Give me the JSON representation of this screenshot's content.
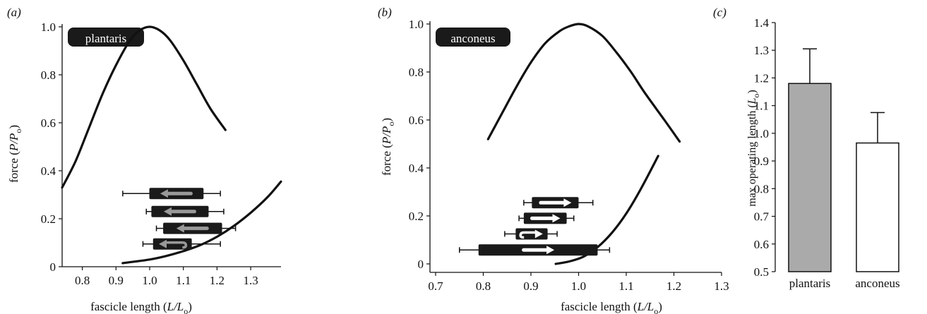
{
  "chart_data": [
    {
      "panel": "(a)",
      "type": "line",
      "label_box": "plantaris",
      "xlabel_prefix": "fascicle length (",
      "xlabel_var": "L/L",
      "xlabel_sub": "o",
      "xlabel_suffix": ")",
      "ylabel_prefix": "force (",
      "ylabel_var": "P/P",
      "ylabel_sub": "o",
      "ylabel_suffix": ")",
      "xlim": [
        0.74,
        1.39
      ],
      "ylim": [
        0,
        1.0
      ],
      "xticks": [
        0.8,
        0.9,
        1.0,
        1.1,
        1.2,
        1.3
      ],
      "xtick_labels": [
        "0.8",
        "0.9",
        "1.0",
        "1.1",
        "1.2",
        "1.3"
      ],
      "yticks": [
        0,
        0.2,
        0.4,
        0.6,
        0.8,
        1.0
      ],
      "ytick_labels": [
        "0",
        "0.2",
        "0.4",
        "0.6",
        "0.8",
        "1.0"
      ],
      "active_curve": {
        "x": [
          0.74,
          0.78,
          0.82,
          0.86,
          0.9,
          0.94,
          0.97,
          1.0,
          1.03,
          1.06,
          1.1,
          1.14,
          1.18,
          1.225
        ],
        "y": [
          0.33,
          0.44,
          0.58,
          0.72,
          0.84,
          0.94,
          0.985,
          1.0,
          0.985,
          0.945,
          0.86,
          0.76,
          0.66,
          0.57
        ]
      },
      "passive_curve": {
        "x": [
          0.92,
          1.0,
          1.05,
          1.1,
          1.15,
          1.2,
          1.25,
          1.3,
          1.35,
          1.39
        ],
        "y": [
          0.015,
          0.03,
          0.045,
          0.065,
          0.09,
          0.125,
          0.17,
          0.225,
          0.29,
          0.355
        ]
      },
      "fascicle_bars": [
        {
          "force": 0.305,
          "whisker": [
            0.92,
            1.21
          ],
          "box": [
            0.999,
            1.16
          ],
          "direction": "shortening",
          "arrow_color": "#999999"
        },
        {
          "force": 0.23,
          "whisker": [
            0.99,
            1.22
          ],
          "box": [
            1.005,
            1.175
          ],
          "direction": "shortening",
          "arrow_color": "#999999"
        },
        {
          "force": 0.16,
          "whisker": [
            1.02,
            1.255
          ],
          "box": [
            1.04,
            1.215
          ],
          "direction": "shortening",
          "arrow_color": "#999999"
        },
        {
          "force": 0.095,
          "whisker": [
            0.98,
            1.21
          ],
          "box": [
            1.01,
            1.125
          ],
          "direction": "shortening-return",
          "arrow_color": "#999999"
        }
      ]
    },
    {
      "panel": "(b)",
      "type": "line",
      "label_box": "anconeus",
      "xlabel_prefix": "fascicle length (",
      "xlabel_var": "L/L",
      "xlabel_sub": "o",
      "xlabel_suffix": ")",
      "ylabel_prefix": "force (",
      "ylabel_var": "P/P",
      "ylabel_sub": "o",
      "ylabel_suffix": ")",
      "xlim": [
        0.7,
        1.3
      ],
      "ylim": [
        0,
        1.0
      ],
      "xticks": [
        0.7,
        0.8,
        0.9,
        1.0,
        1.1,
        1.2,
        1.3
      ],
      "xtick_labels": [
        "0.7",
        "0.8",
        "0.9",
        "1.0",
        "1.1",
        "1.2",
        "1.3"
      ],
      "yticks": [
        0,
        0.2,
        0.4,
        0.6,
        0.8,
        1.0
      ],
      "ytick_labels": [
        "0",
        "0.2",
        "0.4",
        "0.6",
        "0.8",
        "1.0"
      ],
      "active_curve": {
        "x": [
          0.81,
          0.84,
          0.87,
          0.9,
          0.93,
          0.96,
          0.98,
          1.0,
          1.02,
          1.05,
          1.08,
          1.11,
          1.14,
          1.18,
          1.212
        ],
        "y": [
          0.52,
          0.63,
          0.74,
          0.84,
          0.92,
          0.97,
          0.99,
          1.0,
          0.99,
          0.95,
          0.88,
          0.8,
          0.71,
          0.6,
          0.51
        ]
      },
      "passive_curve": {
        "x": [
          0.952,
          0.98,
          1.01,
          1.04,
          1.07,
          1.1,
          1.13,
          1.167
        ],
        "y": [
          0.0,
          0.01,
          0.03,
          0.07,
          0.13,
          0.21,
          0.31,
          0.45
        ]
      },
      "fascicle_bars": [
        {
          "force": 0.255,
          "whisker": [
            0.885,
            1.03
          ],
          "box": [
            0.902,
            1.0
          ],
          "direction": "lengthening",
          "arrow_color": "#ffffff"
        },
        {
          "force": 0.19,
          "whisker": [
            0.875,
            0.99
          ],
          "box": [
            0.885,
            0.975
          ],
          "direction": "lengthening",
          "arrow_color": "#ffffff"
        },
        {
          "force": 0.125,
          "whisker": [
            0.845,
            0.955
          ],
          "box": [
            0.868,
            0.935
          ],
          "direction": "lengthening-return",
          "arrow_color": "#ffffff"
        },
        {
          "force": 0.058,
          "whisker": [
            0.75,
            1.065
          ],
          "box": [
            0.79,
            1.04
          ],
          "direction": "lengthening",
          "arrow_color": "#ffffff"
        }
      ]
    },
    {
      "panel": "(c)",
      "type": "bar",
      "categories": [
        "plantaris",
        "anconeus"
      ],
      "values": [
        1.18,
        0.965
      ],
      "errors": [
        0.125,
        0.11
      ],
      "colors": [
        "#aaaaaa",
        "#ffffff"
      ],
      "ylabel_prefix": "max operating length (",
      "ylabel_var": "L",
      "ylabel_sub": "o",
      "ylabel_suffix": ")",
      "ylim": [
        0.5,
        1.4
      ],
      "yticks": [
        0.5,
        0.6,
        0.7,
        0.8,
        0.9,
        1.0,
        1.1,
        1.2,
        1.3,
        1.4
      ],
      "ytick_labels": [
        "0.5",
        "0.6",
        "0.7",
        "0.8",
        "0.9",
        "1.0",
        "1.1",
        "1.2",
        "1.3",
        "1.4"
      ]
    }
  ]
}
